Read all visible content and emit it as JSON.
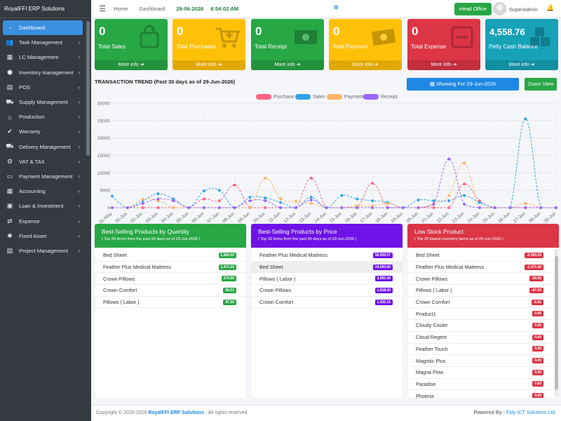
{
  "brand": "RoyalFFI ERP Solutions",
  "sidebar": {
    "items": [
      {
        "label": "Dashboard",
        "icon": "gauge-icon",
        "glyph": "◔",
        "active": true
      },
      {
        "label": "Task Management",
        "icon": "users-icon",
        "glyph": "👥"
      },
      {
        "label": "LC Management",
        "icon": "bank-icon",
        "glyph": "▦"
      },
      {
        "label": "Inventory management",
        "icon": "boxes-icon",
        "glyph": "⬢"
      },
      {
        "label": "POS",
        "icon": "pos-icon",
        "glyph": "▤"
      },
      {
        "label": "Supply Management",
        "icon": "truck-icon",
        "glyph": "⛟"
      },
      {
        "label": "Production",
        "icon": "factory-icon",
        "glyph": "⌂"
      },
      {
        "label": "Warranty",
        "icon": "check-circle-icon",
        "glyph": "✔"
      },
      {
        "label": "Delivery Management",
        "icon": "delivery-icon",
        "glyph": "⛟"
      },
      {
        "label": "VAT & TAX",
        "icon": "tax-icon",
        "glyph": "⚙"
      },
      {
        "label": "Payment Management",
        "icon": "payment-icon",
        "glyph": "▭"
      },
      {
        "label": "Accounting",
        "icon": "calculator-icon",
        "glyph": "▦"
      },
      {
        "label": "Loan & Investment",
        "icon": "loan-icon",
        "glyph": "▣"
      },
      {
        "label": "Expense",
        "icon": "expense-icon",
        "glyph": "⇄"
      },
      {
        "label": "Fixed Asset",
        "icon": "asset-icon",
        "glyph": "✱"
      },
      {
        "label": "Project Management",
        "icon": "project-icon",
        "glyph": "▤"
      }
    ]
  },
  "header": {
    "home": "Home",
    "dashboard": "Dashboard",
    "date": "29-06-2026",
    "time": "6:54:02 AM",
    "office": "Head Office",
    "user": "SuperAdmin"
  },
  "kpis": [
    {
      "value": "0",
      "label": "Total Sales",
      "more": "More info",
      "color": "#28a745",
      "icon": "bag-icon"
    },
    {
      "value": "0",
      "label": "Total Purchases",
      "more": "More info",
      "color": "#ffc107",
      "icon": "cart-icon"
    },
    {
      "value": "0",
      "label": "Total Receipt",
      "more": "More info",
      "color": "#28a745",
      "icon": "money-icon"
    },
    {
      "value": "0",
      "label": "Total Payment",
      "more": "More info",
      "color": "#ffc107",
      "icon": "bill-icon"
    },
    {
      "value": "0",
      "label": "Total Expense",
      "more": "More info",
      "color": "#dc3545",
      "icon": "minus-box-icon"
    },
    {
      "value": "4,558.76",
      "label": "Petty Cash Balance",
      "more": "More info",
      "color": "#17a2b8",
      "icon": "cubes-icon"
    }
  ],
  "trend": {
    "title": "TRANSACTION TREND (Past 30 days as of 29-Jun-2026)",
    "show_button": "Showing For 29-Jun-2026",
    "zoom_button": "Zoom View"
  },
  "chart_data": {
    "type": "line",
    "ylim": [
      0,
      30000
    ],
    "yticks": [
      0,
      5000,
      10000,
      15000,
      20000,
      25000,
      30000
    ],
    "categories": [
      "31-May",
      "01-Jun",
      "02-Jun",
      "03-Jun",
      "04-Jun",
      "05-Jun",
      "06-Jun",
      "07-Jun",
      "08-Jun",
      "09-Jun",
      "10-Jun",
      "11-Jun",
      "12-Jun",
      "13-Jun",
      "14-Jun",
      "15-Jun",
      "16-Jun",
      "17-Jun",
      "18-Jun",
      "19-Jun",
      "20-Jun",
      "21-Jun",
      "22-Jun",
      "23-Jun",
      "24-Jun",
      "25-Jun",
      "26-Jun",
      "27-Jun",
      "28-Jun",
      "29-Jun"
    ],
    "series": [
      {
        "name": "Purchase",
        "color": "#ff6384",
        "values": [
          0,
          0,
          0,
          0,
          0,
          0,
          2500,
          2000,
          6500,
          0,
          0,
          0,
          0,
          8500,
          0,
          0,
          0,
          7000,
          0,
          0,
          0,
          0,
          0,
          6800,
          2000,
          0,
          0,
          0,
          0,
          0
        ]
      },
      {
        "name": "Sales",
        "color": "#36a2eb",
        "values": [
          3300,
          0,
          2000,
          4000,
          2500,
          0,
          4800,
          5000,
          0,
          3000,
          2800,
          1500,
          0,
          3000,
          0,
          3500,
          2500,
          2000,
          1500,
          0,
          2200,
          2000,
          2000,
          3500,
          1500,
          0,
          0,
          25500,
          0,
          0
        ]
      },
      {
        "name": "Payment",
        "color": "#ffb366",
        "values": [
          0,
          0,
          2400,
          2000,
          0,
          0,
          0,
          0,
          0,
          0,
          8500,
          2600,
          1800,
          1200,
          0,
          0,
          500,
          500,
          1200,
          0,
          0,
          1200,
          3500,
          12800,
          0,
          0,
          0,
          1200,
          0,
          0
        ]
      },
      {
        "name": "Receipt",
        "color": "#9966ff",
        "values": [
          0,
          0,
          1200,
          2500,
          2000,
          0,
          0,
          0,
          0,
          2000,
          2000,
          0,
          0,
          2200,
          0,
          0,
          0,
          0,
          0,
          0,
          0,
          1000,
          14000,
          1000,
          0,
          0,
          0,
          0,
          0,
          0
        ]
      }
    ]
  },
  "panels": {
    "quantity": {
      "title": "Best-Selling Products by Quantity",
      "subtitle": "( Top 20 items from the past 60 days as of 29-Jun-2026 )",
      "color": "#28a745",
      "rows": [
        {
          "name": "Bed Sheet",
          "value": "2,000.00"
        },
        {
          "name": "Feather Plus Medical Mattress",
          "value": "1,471.00"
        },
        {
          "name": "Crown Pillows",
          "value": "274.00"
        },
        {
          "name": "Crown Comfort",
          "value": "96.01"
        },
        {
          "name": "Pillows ( Labor )",
          "value": "87.00"
        }
      ]
    },
    "price": {
      "title": "Best-Selling Products by Price",
      "subtitle": "( Top 20 items from the past 60 days as of 29-Jun-2026 )",
      "color": "#6f12e8",
      "rows": [
        {
          "name": "Feather Plus Medical Mattress",
          "value": "58,409.57"
        },
        {
          "name": "Bed Sheet",
          "value": "24,000.00"
        },
        {
          "name": "Pillows ( Labor )",
          "value": "3,955.00"
        },
        {
          "name": "Crown Pillows",
          "value": "1,918.00"
        },
        {
          "name": "Crown Comfort",
          "value": "1,432.15"
        }
      ]
    },
    "low": {
      "title": "Low Stock Product",
      "subtitle": "( Top 20 lowest inventory items as of 29-Jun-2026 )",
      "color": "#dc3545",
      "rows": [
        {
          "name": "Bed Sheet",
          "value": "-2,000.00"
        },
        {
          "name": "Feather Plus Medical Mattress",
          "value": "-1,471.00"
        },
        {
          "name": "Crown Pillows",
          "value": "-99.00"
        },
        {
          "name": "Pillows ( Labor )",
          "value": "-87.00"
        },
        {
          "name": "Crown Comfort",
          "value": "-6.01"
        },
        {
          "name": "Product1",
          "value": "0.00"
        },
        {
          "name": "Cloudy Cooler",
          "value": "0.00"
        },
        {
          "name": "Cloud Regent",
          "value": "0.00"
        },
        {
          "name": "Feather Touch",
          "value": "0.00"
        },
        {
          "name": "Magistic Plus",
          "value": "0.00"
        },
        {
          "name": "Magna Flow",
          "value": "0.00"
        },
        {
          "name": "Paradise",
          "value": "0.00"
        },
        {
          "name": "Phoenix",
          "value": "0.00"
        }
      ]
    }
  },
  "footer": {
    "copyright": "Copyright © 2020-2026",
    "company": "RoyalFFI ERP Solutions",
    "rights": ". All rights reserved.",
    "powered_label": "Powered By :",
    "powered_by": "Eidy ICT Solutions Ltd."
  }
}
